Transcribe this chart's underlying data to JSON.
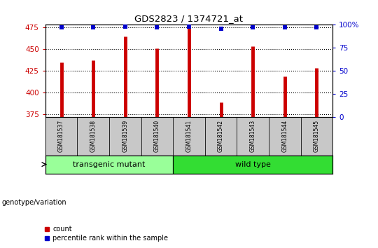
{
  "title": "GDS2823 / 1374721_at",
  "samples": [
    "GSM181537",
    "GSM181538",
    "GSM181539",
    "GSM181540",
    "GSM181541",
    "GSM181542",
    "GSM181543",
    "GSM181544",
    "GSM181545"
  ],
  "counts": [
    435,
    437,
    465,
    451,
    476,
    389,
    453,
    419,
    428
  ],
  "percentile_ranks": [
    97,
    97,
    98,
    97,
    98,
    96,
    97,
    97,
    97
  ],
  "ylim_left": [
    372,
    478
  ],
  "yticks_left": [
    375,
    400,
    425,
    450,
    475
  ],
  "ylim_right": [
    0,
    100
  ],
  "yticks_right": [
    0,
    25,
    50,
    75,
    100
  ],
  "bar_color": "#CC0000",
  "dot_color": "#0000CC",
  "groups": [
    {
      "label": "transgenic mutant",
      "start": 0,
      "end": 3,
      "color": "#99FF99"
    },
    {
      "label": "wild type",
      "start": 4,
      "end": 8,
      "color": "#33DD33"
    }
  ],
  "group_label": "genotype/variation",
  "legend_count_color": "#CC0000",
  "legend_pct_color": "#0000CC",
  "grid_linestyle": ":",
  "grid_linewidth": 0.8,
  "tick_color_left": "#CC0000",
  "tick_color_right": "#0000CC",
  "bar_bottom": 372,
  "sample_box_color": "#C8C8C8",
  "bar_linewidth": 3.5
}
